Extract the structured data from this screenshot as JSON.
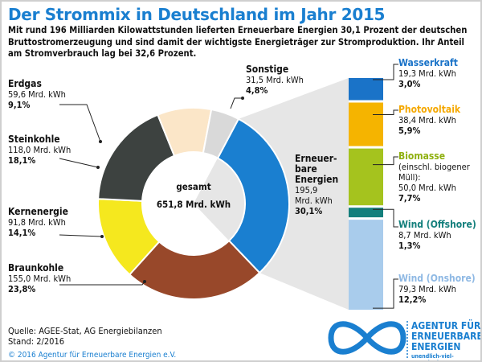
{
  "title": "Der Strommix in Deutschland im Jahr 2015",
  "intro": "Mit rund 196 Milliarden Kilowattstunden lieferten Erneuerbare Energien 30,1 Prozent der deutschen Bruttostromerzeugung und sind  damit der wichtigste Energieträger zur Stromproduktion. Ihr Anteil am Stromverbrauch lag bei 32,6 Prozent.",
  "center": {
    "label": "gesamt",
    "value": "651,8 Mrd. kWh"
  },
  "footer": {
    "source": "Quelle: AGEE-Stat, AG Energiebilanzen",
    "stand": "Stand: 2/2016",
    "copyright": "© 2016 Agentur für Erneuerbare Energien e.V."
  },
  "logo": {
    "line1": "AGENTUR FÜR",
    "line2": "ERNEUERBARE",
    "line3": "ENERGIEN",
    "url": "unendlich-viel-energie.de"
  },
  "chart_data": [
    {
      "type": "pie",
      "donut": true,
      "total": "651,8 Mrd. kWh",
      "slices": [
        {
          "name": "Erneuerbare Energien",
          "label": "Erneuer-\nbare\nEnergien",
          "amount": "195,9 Mrd. kWh",
          "value": 30.1,
          "pct": "30,1%",
          "color": "#1a7fd0"
        },
        {
          "name": "Braunkohle",
          "amount": "155,0 Mrd. kWh",
          "value": 23.8,
          "pct": "23,8%",
          "color": "#98482a"
        },
        {
          "name": "Kernenergie",
          "amount": "91,8 Mrd. kWh",
          "value": 14.1,
          "pct": "14,1%",
          "color": "#f5e81e"
        },
        {
          "name": "Steinkohle",
          "amount": "118,0 Mrd. kWh",
          "value": 18.1,
          "pct": "18,1%",
          "color": "#3d4240"
        },
        {
          "name": "Erdgas",
          "amount": "59,6 Mrd. kWh",
          "value": 9.1,
          "pct": "9,1%",
          "color": "#fbe6c8"
        },
        {
          "name": "Sonstige",
          "amount": "31,5 Mrd. kWh",
          "value": 4.8,
          "pct": "4,8%",
          "color": "#d9d9d9"
        }
      ]
    },
    {
      "type": "bar",
      "stacked": true,
      "segments": [
        {
          "name": "Wasserkraft",
          "amount": "19,3 Mrd. kWh",
          "value": 3.0,
          "pct": "3,0%",
          "color": "#1a73c8"
        },
        {
          "name": "Photovoltaik",
          "amount": "38,4 Mrd. kWh",
          "value": 5.9,
          "pct": "5,9%",
          "color": "#f5b400"
        },
        {
          "name": "Biomasse",
          "note": "(einschl. biogener Müll):",
          "amount": "50,0 Mrd. kWh",
          "value": 7.7,
          "pct": "7,7%",
          "color": "#a5c31e"
        },
        {
          "name": "Wind (Offshore)",
          "amount": "8,7 Mrd. kWh",
          "value": 1.3,
          "pct": "1,3%",
          "color": "#137f7c"
        },
        {
          "name": "Wind (Onshore)",
          "amount": "79,3 Mrd. kWh",
          "value": 12.2,
          "pct": "12,2%",
          "color": "#a9ccec"
        }
      ]
    }
  ]
}
